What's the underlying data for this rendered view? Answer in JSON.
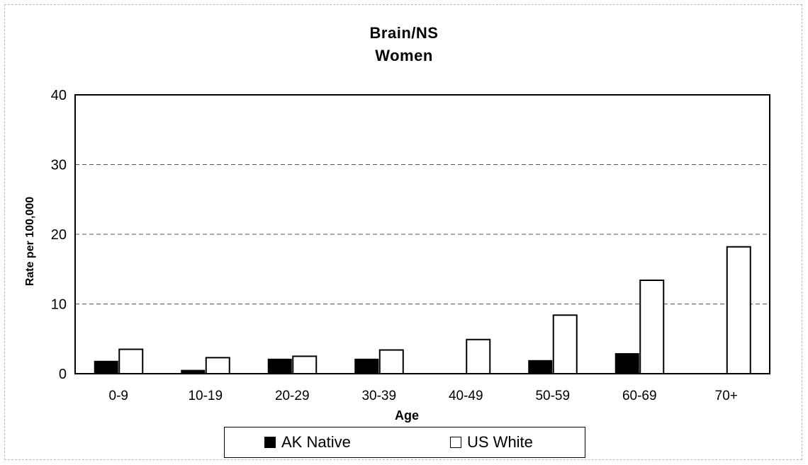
{
  "chart_data": {
    "type": "bar",
    "title": "Brain/NS",
    "subtitle": "Women",
    "xlabel": "Age",
    "ylabel": "Rate per 100,000",
    "ylim": [
      0,
      40
    ],
    "yticks": [
      0,
      10,
      20,
      30,
      40
    ],
    "grid": true,
    "legend_position": "bottom",
    "categories": [
      "0-9",
      "10-19",
      "20-29",
      "30-39",
      "40-49",
      "50-59",
      "60-69",
      "70+"
    ],
    "series": [
      {
        "name": "AK Native",
        "color": "#000000",
        "values": [
          1.8,
          0.5,
          2.1,
          2.1,
          0,
          1.9,
          2.9,
          0
        ]
      },
      {
        "name": "US White",
        "color": "#ffffff",
        "values": [
          3.5,
          2.3,
          2.5,
          3.4,
          4.9,
          8.4,
          13.4,
          18.2
        ]
      }
    ]
  }
}
